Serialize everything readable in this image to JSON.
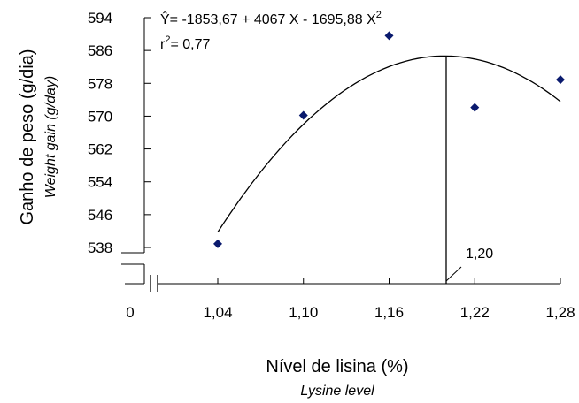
{
  "chart_data": {
    "type": "scatter",
    "ylabel": "Ganho de peso (g/dia)",
    "ylabel_en": "Weight gain (g/day)",
    "xlabel": "Nível de lisina (%)",
    "xlabel_en": "Lysine level",
    "equation": "Ŷ= -1853,67 + 4067 X - 1695,88 X",
    "equation_exp": "2",
    "r2_r": "r",
    "r2_exp": "2",
    "r2_value": "= 0,77",
    "x_ticks": [
      1.04,
      1.1,
      1.16,
      1.22,
      1.28
    ],
    "x_tick_labels": [
      "1,04",
      "1,10",
      "1,16",
      "1,22",
      "1,28"
    ],
    "x_zero_label": "0",
    "y_ticks": [
      538,
      546,
      554,
      562,
      570,
      578,
      586,
      594
    ],
    "y_tick_labels": [
      "538",
      "546",
      "554",
      "562",
      "570",
      "578",
      "586",
      "594"
    ],
    "xlim": [
      1.04,
      1.28
    ],
    "ylim": [
      538,
      594
    ],
    "points": [
      {
        "x": 1.04,
        "y": 538.9
      },
      {
        "x": 1.1,
        "y": 570.2
      },
      {
        "x": 1.16,
        "y": 589.6
      },
      {
        "x": 1.22,
        "y": 572.1
      },
      {
        "x": 1.28,
        "y": 578.9
      }
    ],
    "fit": {
      "a": -1853.67,
      "b": 4067,
      "c": -1695.88,
      "x_from": 1.04,
      "x_to": 1.28
    },
    "optimum_x": 1.2,
    "optimum_label": "1,20",
    "marker_color": "#0a1a6e",
    "line_color": "#000000"
  }
}
